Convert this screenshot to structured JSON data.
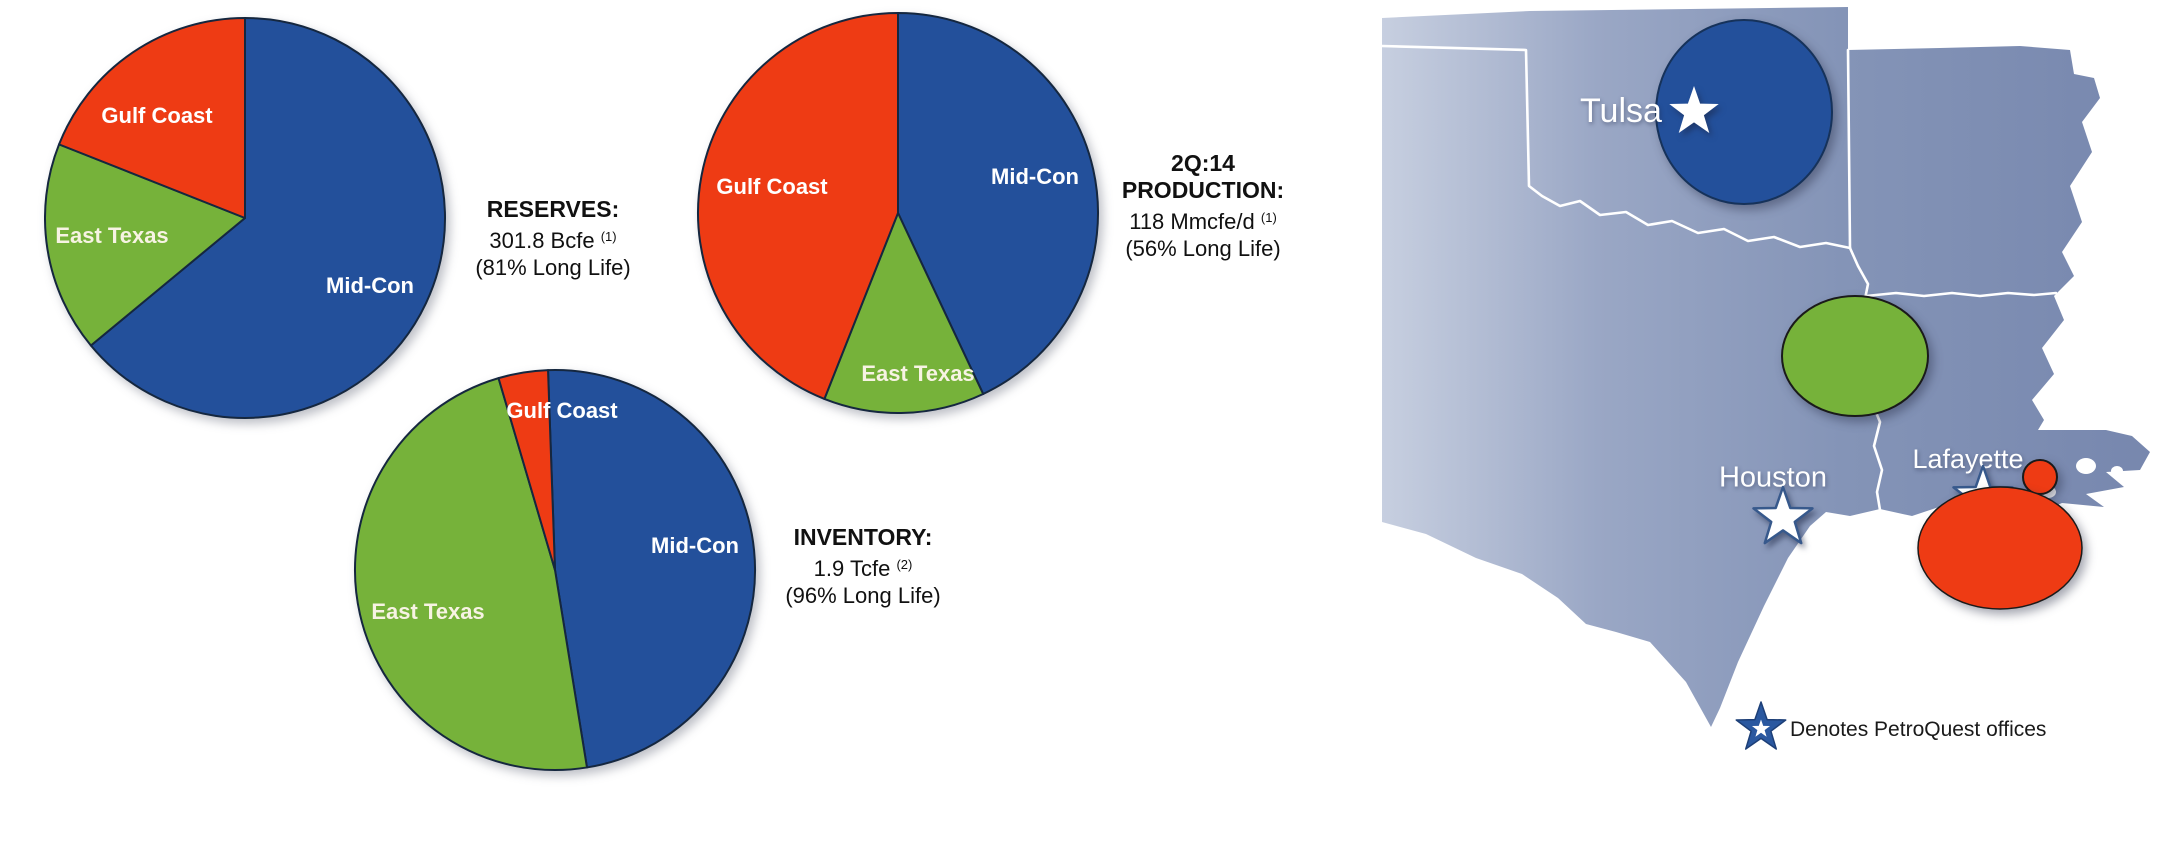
{
  "colors": {
    "mid_con_blue": "#23509B",
    "east_texas_green": "#76B23A",
    "gulf_coast_red": "#EE3B14",
    "slice_outline": "#15273F",
    "map_light": "#C7CFE0",
    "map_mid": "#8A9ABC",
    "map_dark": "#7787AE",
    "legend_text": "#1A1A1A"
  },
  "blocks": {
    "reserves": {
      "title": "RESERVES:",
      "value": "301.8 Bcfe",
      "footnote": "(1)",
      "subline": "(81% Long Life)"
    },
    "production": {
      "period": "2Q:14",
      "title": "PRODUCTION:",
      "value": "118 Mmcfe/d",
      "footnote": "(1)",
      "subline": "(56% Long Life)"
    },
    "inventory": {
      "title": "INVENTORY:",
      "value": "1.9 Tcfe",
      "footnote": "(2)",
      "subline": "(96% Long Life)"
    }
  },
  "chart_data": [
    {
      "type": "pie",
      "name": "reserves",
      "title": "RESERVES: 301.8 Bcfe (81% Long Life)",
      "units": "percent of total reserves",
      "long_life_pct": 81,
      "slices": [
        {
          "label": "Mid-Con",
          "value": 64,
          "color": "#23509B"
        },
        {
          "label": "East Texas",
          "value": 17,
          "color": "#76B23A"
        },
        {
          "label": "Gulf Coast",
          "value": 19,
          "color": "#EE3B14"
        }
      ]
    },
    {
      "type": "pie",
      "name": "production",
      "title": "2Q:14 PRODUCTION: 118 Mmcfe/d (56% Long Life)",
      "units": "percent of total production",
      "long_life_pct": 56,
      "slices": [
        {
          "label": "Mid-Con",
          "value": 43,
          "color": "#23509B"
        },
        {
          "label": "East Texas",
          "value": 13,
          "color": "#76B23A"
        },
        {
          "label": "Gulf Coast",
          "value": 44,
          "color": "#EE3B14"
        }
      ]
    },
    {
      "type": "pie",
      "name": "inventory",
      "title": "INVENTORY: 1.9 Tcfe (96% Long Life)",
      "units": "percent of total inventory",
      "long_life_pct": 96,
      "slices": [
        {
          "label": "Mid-Con",
          "value": 48,
          "color": "#23509B"
        },
        {
          "label": "East Texas",
          "value": 48,
          "color": "#76B23A"
        },
        {
          "label": "Gulf Coast",
          "value": 4,
          "color": "#EE3B14"
        }
      ]
    }
  ],
  "map": {
    "cities": [
      {
        "name": "Tulsa"
      },
      {
        "name": "Houston"
      },
      {
        "name": "Lafayette"
      }
    ],
    "areas": [
      {
        "name": "Mid-Con",
        "color": "#23509B"
      },
      {
        "name": "East Texas",
        "color": "#76B23A"
      },
      {
        "name": "Gulf Coast",
        "color": "#EE3B14"
      }
    ],
    "legend": "Denotes PetroQuest offices"
  }
}
